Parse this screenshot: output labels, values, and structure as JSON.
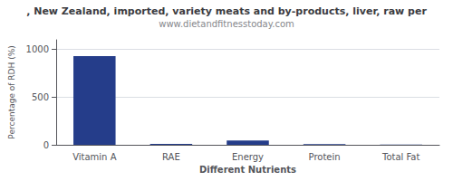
{
  "chart_data": {
    "type": "bar",
    "title": ", New Zealand, imported, variety meats and by-products, liver, raw per",
    "subtitle": "www.dietandfitnesstoday.com",
    "categories": [
      "Vitamin A",
      "RAE",
      "Energy",
      "Protein",
      "Total Fat"
    ],
    "values": [
      930,
      10,
      45,
      8,
      2
    ],
    "color": "#253d8a",
    "xlabel": "Different Nutrients",
    "ylabel": "Percentage of RDH (%)",
    "ylim": [
      0,
      1100
    ],
    "yticks": [
      0,
      500,
      1000
    ],
    "grid": true
  }
}
